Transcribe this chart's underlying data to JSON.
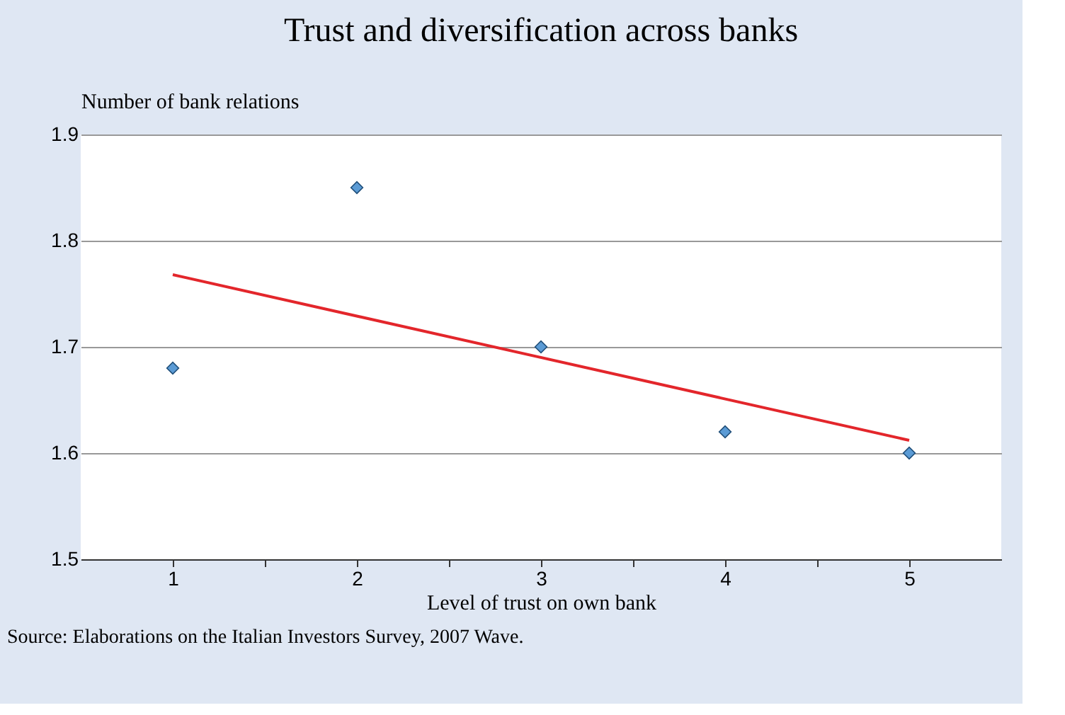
{
  "chart_data": {
    "type": "scatter",
    "title": "Trust and diversification across banks",
    "xlabel": "Level of trust on own bank",
    "ylabel": "Number of bank relations",
    "x": [
      1,
      2,
      3,
      4,
      5
    ],
    "series": [
      {
        "color": "#5b9bd5",
        "marker": "diamond",
        "values": [
          1.68,
          1.85,
          1.7,
          1.62,
          1.6
        ]
      },
      {
        "type": "line",
        "color": "#e3262b",
        "x": [
          1,
          5
        ],
        "values": [
          1.768,
          1.612
        ]
      }
    ],
    "xlim": [
      0.5,
      5.5
    ],
    "xticks": [
      1,
      {
        "value": 1.5,
        "label": null
      },
      2,
      {
        "value": 2.5,
        "label": null
      },
      3,
      {
        "value": 3.5,
        "label": null
      },
      4,
      {
        "value": 4.5,
        "label": null
      },
      5
    ],
    "ylim": [
      1.5,
      1.9
    ],
    "yticks": [
      1.5,
      1.6,
      1.7,
      1.8,
      1.9
    ],
    "grid": "y",
    "annotations": [
      "Source: Elaborations on the Italian Investors Survey, 2007 Wave."
    ]
  }
}
